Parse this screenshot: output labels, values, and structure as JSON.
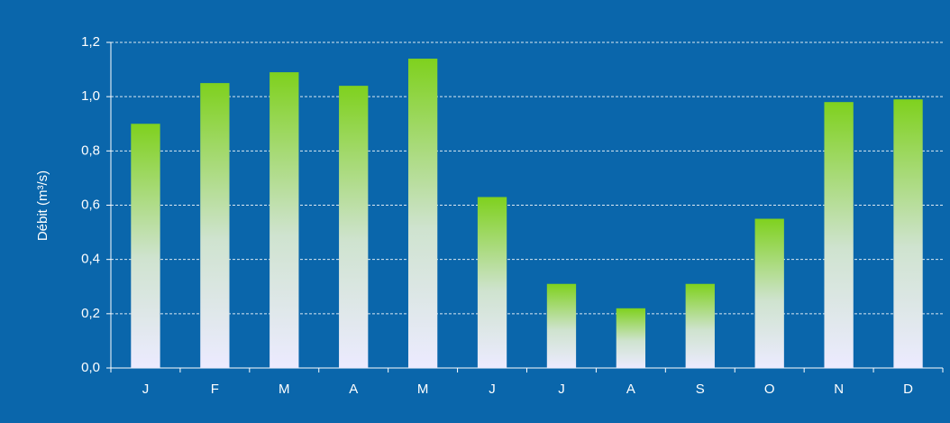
{
  "chart_data": {
    "type": "bar",
    "y_label": "Débit (m³/s)",
    "categories": [
      "J",
      "F",
      "M",
      "A",
      "M",
      "J",
      "J",
      "A",
      "S",
      "O",
      "N",
      "D"
    ],
    "values": [
      0.9,
      1.05,
      1.09,
      1.04,
      1.14,
      0.63,
      0.31,
      0.22,
      0.31,
      0.55,
      0.98,
      0.99
    ],
    "color": "#7fd11e",
    "ylim": [
      0,
      1.2
    ],
    "yticks": [
      {
        "value": 0,
        "label": "0,0"
      },
      {
        "value": 0.2,
        "label": "0,2"
      },
      {
        "value": 0.4,
        "label": "0,4"
      },
      {
        "value": 0.6,
        "label": "0,6"
      },
      {
        "value": 0.8,
        "label": "0,8"
      },
      {
        "value": 1.0,
        "label": "1,0"
      },
      {
        "value": 1.2,
        "label": "1,2"
      }
    ],
    "grid": true
  }
}
